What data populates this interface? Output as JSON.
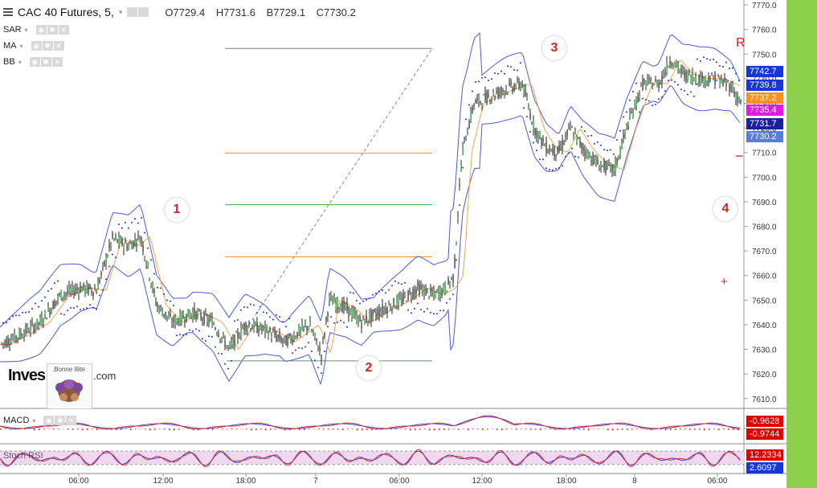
{
  "header": {
    "symbol": "CAC 40 Futures, 5,",
    "open": "O7729.4",
    "high": "H7731.6",
    "bid": "B7729.1",
    "close": "C7730.2"
  },
  "indicators": [
    "SAR",
    "MA",
    "BB"
  ],
  "subpanes": {
    "macd_label": "MACD",
    "stoch_label": "Stoch RSI"
  },
  "price_axis": {
    "ticks": [
      "7770.0",
      "7760.0",
      "7750.0",
      "7740.0",
      "7730.0",
      "7720.0",
      "7710.0",
      "7700.0",
      "7690.0",
      "7680.0",
      "7670.0",
      "7660.0",
      "7650.0",
      "7640.0",
      "7630.0",
      "7620.0",
      "7610.0"
    ]
  },
  "price_tags": [
    {
      "text": "7742.7",
      "color": "#1736d6"
    },
    {
      "text": "7739.8",
      "color": "#1736d6"
    },
    {
      "text": "7737.2",
      "color": "#f7921e"
    },
    {
      "text": "7735.4",
      "color": "#e318e3"
    },
    {
      "text": "7731.7",
      "color": "#1a1f9c"
    },
    {
      "text": "7730.2",
      "color": "#5a7bd8"
    }
  ],
  "macd_tags": [
    {
      "text": "-0.9628",
      "color": "#e00000"
    },
    {
      "text": "-0.9744",
      "color": "#e00000"
    }
  ],
  "stoch_tags": [
    {
      "text": "12.2334",
      "color": "#e00000"
    },
    {
      "text": "2.6097",
      "color": "#1736d6"
    }
  ],
  "time_axis": {
    "labels": [
      "06:00",
      "12:00",
      "18:00",
      "7",
      "06:00",
      "12:00",
      "18:00",
      "8",
      "06:00"
    ]
  },
  "annotations": {
    "wave_labels": [
      "1",
      "2",
      "3",
      "4"
    ],
    "side_marks": [
      "R",
      "−",
      "+"
    ]
  },
  "logo": {
    "text": "Inves",
    "suffix": ".com",
    "sticker_caption": "Bonne fête"
  },
  "chart_data": {
    "type": "candlestick",
    "ylim": [
      7606,
      7772
    ],
    "fib_levels": [
      7752.3,
      7709.8,
      7688.8,
      7667.6,
      7625.3
    ],
    "close_path": [
      {
        "x": 0,
        "y": 7632
      },
      {
        "x": 25,
        "y": 7636
      },
      {
        "x": 50,
        "y": 7641
      },
      {
        "x": 75,
        "y": 7652
      },
      {
        "x": 100,
        "y": 7655
      },
      {
        "x": 120,
        "y": 7654
      },
      {
        "x": 140,
        "y": 7675
      },
      {
        "x": 160,
        "y": 7672
      },
      {
        "x": 175,
        "y": 7676
      },
      {
        "x": 195,
        "y": 7648
      },
      {
        "x": 215,
        "y": 7641
      },
      {
        "x": 240,
        "y": 7645
      },
      {
        "x": 265,
        "y": 7641
      },
      {
        "x": 285,
        "y": 7630
      },
      {
        "x": 305,
        "y": 7640
      },
      {
        "x": 330,
        "y": 7638
      },
      {
        "x": 355,
        "y": 7633
      },
      {
        "x": 385,
        "y": 7640
      },
      {
        "x": 400,
        "y": 7628
      },
      {
        "x": 410,
        "y": 7650
      },
      {
        "x": 430,
        "y": 7647
      },
      {
        "x": 450,
        "y": 7641
      },
      {
        "x": 475,
        "y": 7646
      },
      {
        "x": 500,
        "y": 7650
      },
      {
        "x": 520,
        "y": 7655
      },
      {
        "x": 540,
        "y": 7652
      },
      {
        "x": 555,
        "y": 7655
      },
      {
        "x": 565,
        "y": 7660
      },
      {
        "x": 575,
        "y": 7710
      },
      {
        "x": 590,
        "y": 7730
      },
      {
        "x": 610,
        "y": 7733
      },
      {
        "x": 630,
        "y": 7736
      },
      {
        "x": 650,
        "y": 7738
      },
      {
        "x": 665,
        "y": 7720
      },
      {
        "x": 680,
        "y": 7712
      },
      {
        "x": 695,
        "y": 7710
      },
      {
        "x": 710,
        "y": 7720
      },
      {
        "x": 725,
        "y": 7712
      },
      {
        "x": 745,
        "y": 7705
      },
      {
        "x": 765,
        "y": 7703
      },
      {
        "x": 780,
        "y": 7720
      },
      {
        "x": 800,
        "y": 7738
      },
      {
        "x": 820,
        "y": 7738
      },
      {
        "x": 835,
        "y": 7748
      },
      {
        "x": 850,
        "y": 7742
      },
      {
        "x": 870,
        "y": 7740
      },
      {
        "x": 890,
        "y": 7740
      },
      {
        "x": 910,
        "y": 7737
      },
      {
        "x": 922,
        "y": 7730
      }
    ]
  }
}
